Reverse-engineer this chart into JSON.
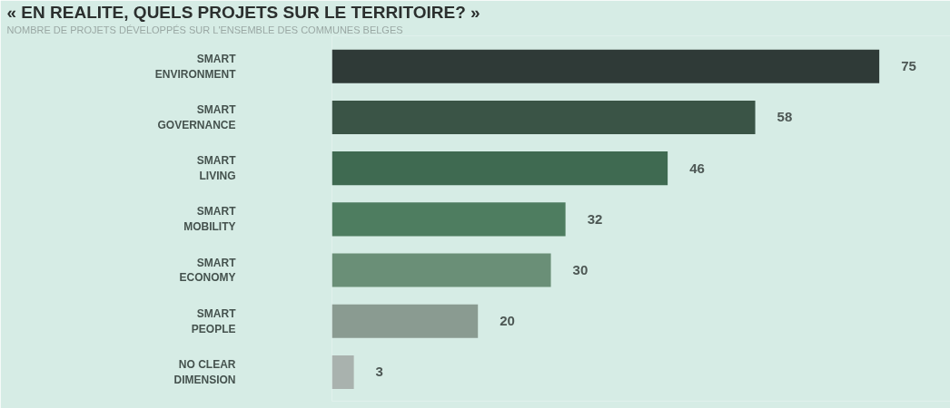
{
  "chart_data": {
    "type": "bar",
    "orientation": "horizontal",
    "title": "« EN REALITE, QUELS PROJETS SUR LE TERRITOIRE? »",
    "subtitle": "NOMBRE DE PROJETS DÉVELOPPÉS SUR L'ENSEMBLE DES COMMUNES BELGES",
    "categories": [
      "SMART\nENVIRONMENT",
      "SMART\nGOVERNANCE",
      "SMART\nLIVING",
      "SMART\nMOBILITY",
      "SMART\nECONOMY",
      "SMART\nPEOPLE",
      "NO CLEAR\nDIMENSION"
    ],
    "values": [
      75,
      58,
      46,
      32,
      30,
      20,
      3
    ],
    "colors": [
      "#2f3a37",
      "#3a5446",
      "#3f6a51",
      "#4e7d60",
      "#6a8f77",
      "#8a9b91",
      "#a9b2ae"
    ],
    "data_labels": true
  }
}
